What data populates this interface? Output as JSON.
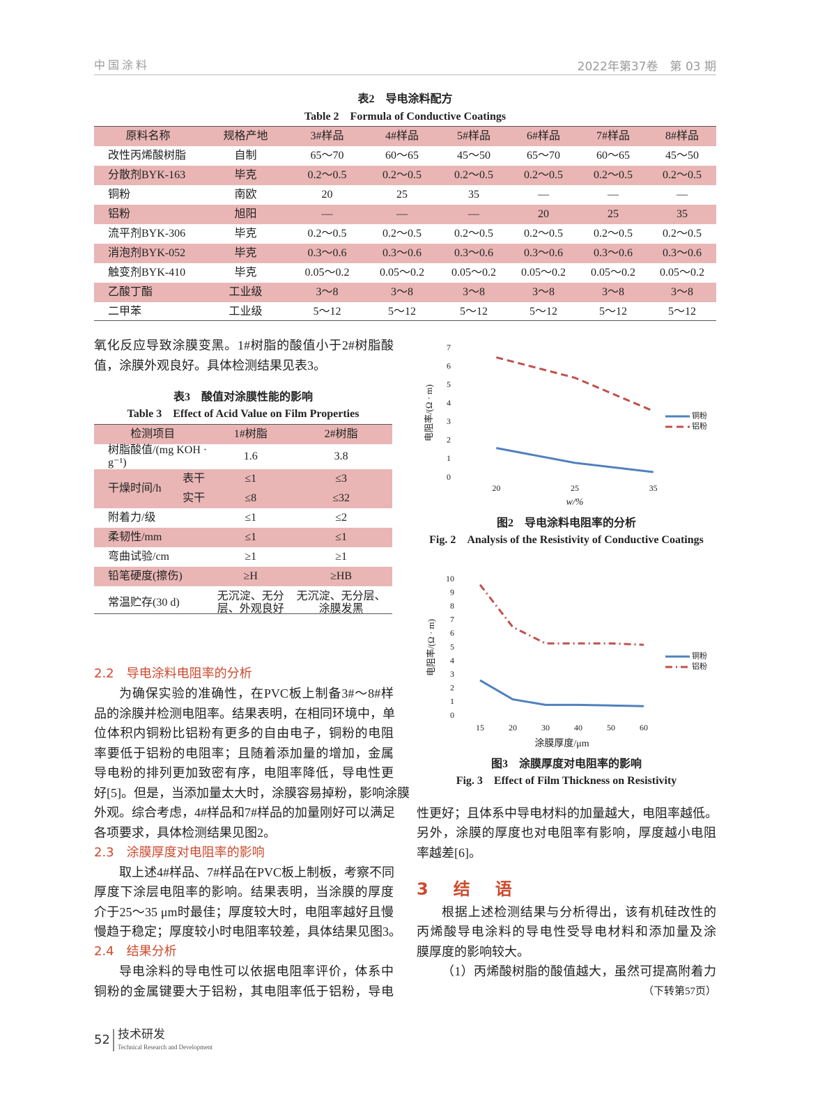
{
  "header": {
    "journal": "中国涂料",
    "issue": "2022年第37卷　第 03 期"
  },
  "table2": {
    "title_cn": "表2　导电涂料配方",
    "title_en": "Table 2　Formula of Conductive Coatings",
    "columns": [
      "原料名称",
      "规格产地",
      "3#样品",
      "4#样品",
      "5#样品",
      "6#样品",
      "7#样品",
      "8#样品"
    ],
    "rows": [
      [
        "改性丙烯酸树脂",
        "自制",
        "65～70",
        "60～65",
        "45～50",
        "65～70",
        "60～65",
        "45～50"
      ],
      [
        "分散剂BYK-163",
        "毕克",
        "0.2～0.5",
        "0.2～0.5",
        "0.2～0.5",
        "0.2～0.5",
        "0.2～0.5",
        "0.2～0.5"
      ],
      [
        "铜粉",
        "南欧",
        "20",
        "25",
        "35",
        "—",
        "—",
        "—"
      ],
      [
        "铝粉",
        "旭阳",
        "—",
        "—",
        "—",
        "20",
        "25",
        "35"
      ],
      [
        "流平剂BYK-306",
        "毕克",
        "0.2～0.5",
        "0.2～0.5",
        "0.2～0.5",
        "0.2～0.5",
        "0.2～0.5",
        "0.2～0.5"
      ],
      [
        "消泡剂BYK-052",
        "毕克",
        "0.3～0.6",
        "0.3～0.6",
        "0.3～0.6",
        "0.3～0.6",
        "0.3～0.6",
        "0.3～0.6"
      ],
      [
        "触变剂BYK-410",
        "毕克",
        "0.05～0.2",
        "0.05～0.2",
        "0.05～0.2",
        "0.05～0.2",
        "0.05～0.2",
        "0.05～0.2"
      ],
      [
        "乙酸丁酯",
        "工业级",
        "3～8",
        "3～8",
        "3～8",
        "3～8",
        "3～8",
        "3～8"
      ],
      [
        "二甲苯",
        "工业级",
        "5～12",
        "5～12",
        "5～12",
        "5～12",
        "5～12",
        "5～12"
      ]
    ]
  },
  "para1": [
    "氧化反应导致涂膜变黑。1#树脂的酸值小于2#树脂酸",
    "值，涂膜外观良好。具体检测结果见表3。"
  ],
  "table3": {
    "title_cn": "表3　酸值对涂膜性能的影响",
    "title_en": "Table 3　Effect of Acid Value on Film Properties",
    "columns": [
      "检测项目",
      "1#树脂",
      "2#树脂"
    ],
    "rows": [
      [
        "树脂酸值/(mg KOH · g⁻¹)",
        "1.6",
        "3.8"
      ],
      [
        "干燥时间/h",
        "表干",
        "≤1",
        "≤3"
      ],
      [
        "实干",
        "≤8",
        "≤32"
      ],
      [
        "附着力/级",
        "≤1",
        "≤2"
      ],
      [
        "柔韧性/mm",
        "≤1",
        "≤1"
      ],
      [
        "弯曲试验/cm",
        "≥1",
        "≥1"
      ],
      [
        "铅笔硬度(擦伤)",
        "≥H",
        "≥HB"
      ],
      [
        "常温贮存(30 d)",
        "无沉淀、无分层、外观良好",
        "无沉淀、无分层、涂膜发黑"
      ]
    ]
  },
  "sec22": {
    "heading": "2.2　导电涂料电阻率的分析",
    "lines": [
      "为确保实验的准确性，在PVC板上制备3#～8#样",
      "品的涂膜并检测电阻率。结果表明，在相同环境中，单",
      "位体积内铜粉比铝粉有更多的自由电子，铜粉的电阻",
      "率要低于铝粉的电阻率；且随着添加量的增加，金属",
      "导电粉的排列更加致密有序，电阻率降低，导电性更",
      "好[5]。但是，当添加量太大时，涂膜容易掉粉，影响涂膜",
      "外观。综合考虑，4#样品和7#样品的加量刚好可以满足",
      "各项要求，具体检测结果见图2。"
    ]
  },
  "sec23": {
    "heading": "2.3　涂膜厚度对电阻率的影响",
    "lines": [
      "取上述4#样品、7#样品在PVC板上制板，考察不同",
      "厚度下涂层电阻率的影响。结果表明，当涂膜的厚度",
      "介于25～35 μm时最佳；厚度较大时，电阻率越好且慢",
      "慢趋于稳定；厚度较小时电阻率较差，具体结果见图3。"
    ]
  },
  "sec24": {
    "heading": "2.4　结果分析",
    "lines": [
      "导电涂料的导电性可以依据电阻率评价，体系中",
      "铜粉的金属键要大于铝粉，其电阻率低于铝粉，导电",
      "性更好；且体系中导电材料的加量越大，电阻率越低。",
      "另外，涂膜的厚度也对电阻率有影响，厚度越小电阻",
      "率越差[6]。"
    ]
  },
  "sec3": {
    "heading": "3　结　语",
    "lines": [
      "根据上述检测结果与分析得出，该有机硅改性的",
      "丙烯酸导电涂料的导电性受导电材料和添加量及涂",
      "膜厚度的影响较大。",
      "（1）丙烯酸树脂的酸值越大，虽然可提高附着力"
    ],
    "continued": "（下转第57页）"
  },
  "chart_data": [
    {
      "type": "line",
      "title": "图2　导电涂料电阻率的分析",
      "title_en": "Fig. 2　Analysis of the Resistivity of Conductive Coatings",
      "x_label": "w/%",
      "y_label": "电阻率/(Ω · m)",
      "categories": [
        "20",
        "25",
        "35"
      ],
      "ylim": [
        0,
        7
      ],
      "yticks": [
        0,
        1,
        2,
        3,
        4,
        5,
        6,
        7
      ],
      "legend": "right",
      "series": [
        {
          "name": "铜粉",
          "color": "#4f81bd",
          "line_style": "solid",
          "values": [
            1.6,
            0.8,
            0.3
          ]
        },
        {
          "name": "铝粉",
          "color": "#c0504d",
          "line_style": "dashed",
          "values": [
            6.5,
            5.4,
            3.6
          ]
        }
      ]
    },
    {
      "type": "line",
      "title": "图3　涂膜厚度对电阻率的影响",
      "title_en": "Fig. 3　Effect of Film Thickness on Resistivity",
      "x_label": "涂膜厚度/μm",
      "y_label": "电阻率/(Ω · m)",
      "categories": [
        "15",
        "20",
        "30",
        "40",
        "50",
        "60"
      ],
      "ylim": [
        0,
        10
      ],
      "yticks": [
        0,
        1,
        2,
        3,
        4,
        5,
        6,
        7,
        8,
        9,
        10
      ],
      "legend": "right",
      "series": [
        {
          "name": "铜粉",
          "color": "#4f81bd",
          "line_style": "solid",
          "values": [
            2.6,
            1.2,
            0.8,
            0.8,
            0.75,
            0.7
          ]
        },
        {
          "name": "铝粉",
          "color": "#c0504d",
          "line_style": "dash-dot",
          "values": [
            9.6,
            6.5,
            5.3,
            5.3,
            5.3,
            5.2
          ]
        }
      ]
    }
  ],
  "footer": {
    "page": "52",
    "section_cn": "技术研发",
    "section_en": "Technical Research and Development"
  }
}
